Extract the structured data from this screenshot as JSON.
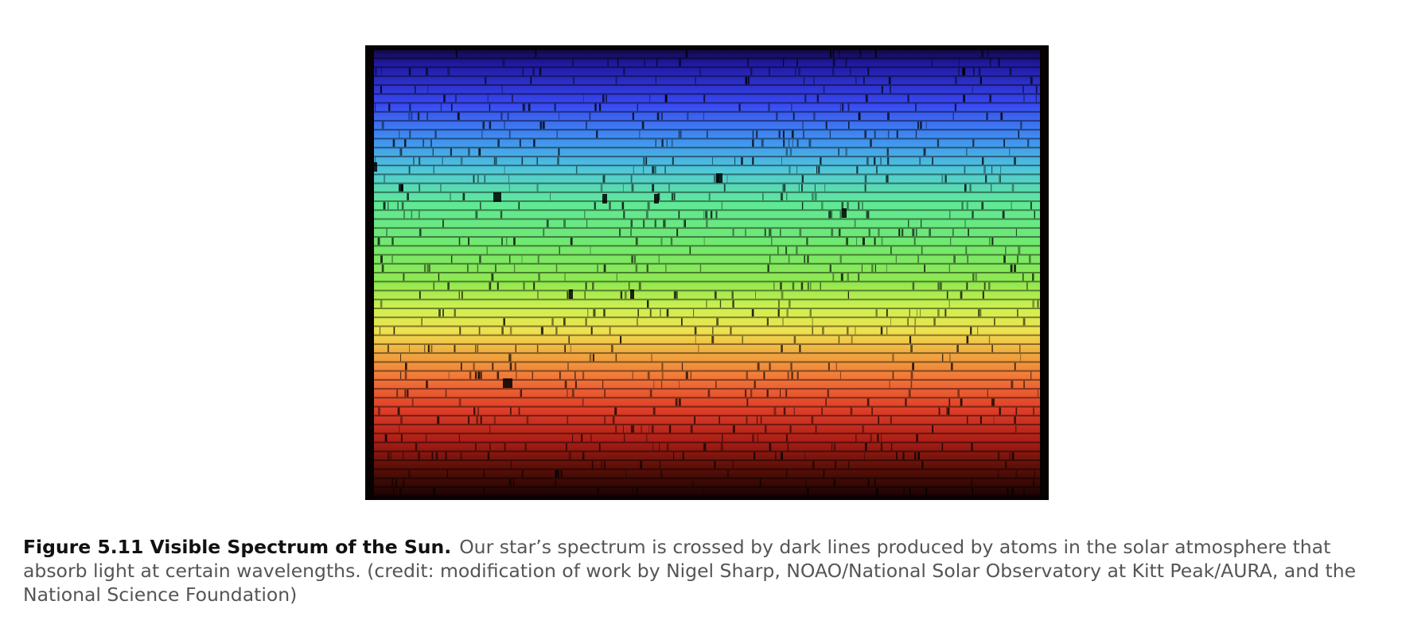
{
  "figure": {
    "label": "Figure 5.11 Visible Spectrum of the Sun.",
    "caption": "Our star’s spectrum is crossed by dark lines produced by atoms in the solar atmosphere that absorb light at certain wavelengths. (credit: modification of work by Nigel Sharp, NOAO/National Solar Observatory at Kitt Peak/AURA, and the National Science Foundation)",
    "image": {
      "subject": "solar spectrum with absorption lines",
      "colors": {
        "frame": "#060202",
        "top": "#1a1580",
        "blue": "#3a5cf0",
        "cyan": "#4fc0e0",
        "green": "#60e070",
        "yellow": "#e0f050",
        "orange": "#f0a040",
        "red": "#e03020",
        "bottom": "#2a0505"
      }
    }
  }
}
